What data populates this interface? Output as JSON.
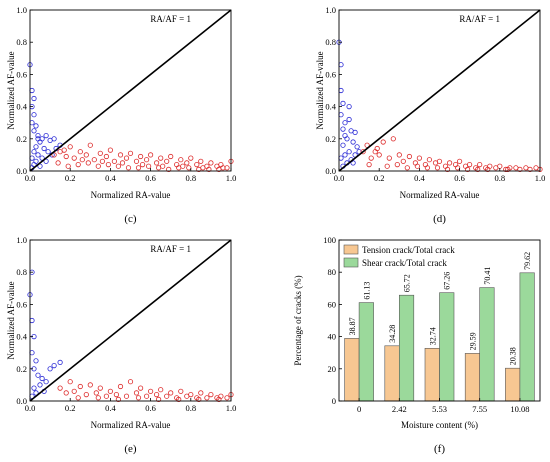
{
  "chart_data": [
    {
      "panel": "c",
      "type": "scatter",
      "xlabel": "Normalized RA-value",
      "ylabel": "Normalized AF-value",
      "xlim": [
        0,
        1.0
      ],
      "ylim": [
        0,
        1.0
      ],
      "xticks": [
        "0.0",
        "0.2",
        "0.4",
        "0.6",
        "0.8",
        "1.0"
      ],
      "yticks": [
        "0.0",
        "0.2",
        "0.4",
        "0.6",
        "0.8",
        "1.0"
      ],
      "annotation": "RA/AF = 1",
      "diagonal": {
        "x": [
          0,
          1.0
        ],
        "y": [
          0,
          1.0
        ],
        "color": "#000000"
      },
      "series": [
        {
          "color": "#2a2ad6",
          "points": [
            [
              0.0,
              0.66
            ],
            [
              0.01,
              0.5
            ],
            [
              0.01,
              0.4
            ],
            [
              0.02,
              0.35
            ],
            [
              0.01,
              0.3
            ],
            [
              0.03,
              0.28
            ],
            [
              0.02,
              0.25
            ],
            [
              0.04,
              0.22
            ],
            [
              0.06,
              0.2
            ],
            [
              0.08,
              0.22
            ],
            [
              0.05,
              0.18
            ],
            [
              0.1,
              0.19
            ],
            [
              0.12,
              0.2
            ],
            [
              0.03,
              0.15
            ],
            [
              0.07,
              0.14
            ],
            [
              0.02,
              0.12
            ],
            [
              0.09,
              0.12
            ],
            [
              0.04,
              0.1
            ],
            [
              0.11,
              0.1
            ],
            [
              0.01,
              0.08
            ],
            [
              0.06,
              0.08
            ],
            [
              0.03,
              0.06
            ],
            [
              0.08,
              0.06
            ],
            [
              0.02,
              0.04
            ],
            [
              0.05,
              0.03
            ],
            [
              0.01,
              0.02
            ],
            [
              0.13,
              0.14
            ],
            [
              0.15,
              0.16
            ],
            [
              0.04,
              0.2
            ],
            [
              0.02,
              0.45
            ]
          ]
        },
        {
          "color": "#dd2a2a",
          "points": [
            [
              0.12,
              0.1
            ],
            [
              0.15,
              0.12
            ],
            [
              0.18,
              0.09
            ],
            [
              0.2,
              0.15
            ],
            [
              0.22,
              0.08
            ],
            [
              0.25,
              0.12
            ],
            [
              0.28,
              0.1
            ],
            [
              0.3,
              0.16
            ],
            [
              0.32,
              0.07
            ],
            [
              0.35,
              0.11
            ],
            [
              0.38,
              0.09
            ],
            [
              0.4,
              0.13
            ],
            [
              0.42,
              0.06
            ],
            [
              0.45,
              0.1
            ],
            [
              0.48,
              0.08
            ],
            [
              0.5,
              0.11
            ],
            [
              0.53,
              0.06
            ],
            [
              0.55,
              0.09
            ],
            [
              0.58,
              0.07
            ],
            [
              0.6,
              0.1
            ],
            [
              0.63,
              0.05
            ],
            [
              0.65,
              0.08
            ],
            [
              0.68,
              0.06
            ],
            [
              0.7,
              0.09
            ],
            [
              0.73,
              0.04
            ],
            [
              0.75,
              0.07
            ],
            [
              0.78,
              0.05
            ],
            [
              0.8,
              0.08
            ],
            [
              0.83,
              0.04
            ],
            [
              0.85,
              0.06
            ],
            [
              0.88,
              0.03
            ],
            [
              0.9,
              0.05
            ],
            [
              0.93,
              0.03
            ],
            [
              0.95,
              0.04
            ],
            [
              0.98,
              0.02
            ],
            [
              1.0,
              0.06
            ],
            [
              0.14,
              0.05
            ],
            [
              0.24,
              0.04
            ],
            [
              0.34,
              0.03
            ],
            [
              0.44,
              0.03
            ],
            [
              0.54,
              0.02
            ],
            [
              0.64,
              0.02
            ],
            [
              0.74,
              0.02
            ],
            [
              0.84,
              0.01
            ],
            [
              0.94,
              0.01
            ],
            [
              0.19,
              0.03
            ],
            [
              0.29,
              0.05
            ],
            [
              0.39,
              0.04
            ],
            [
              0.49,
              0.02
            ],
            [
              0.59,
              0.03
            ],
            [
              0.69,
              0.01
            ],
            [
              0.79,
              0.02
            ],
            [
              0.89,
              0.01
            ],
            [
              0.17,
              0.13
            ],
            [
              0.26,
              0.07
            ],
            [
              0.36,
              0.06
            ],
            [
              0.46,
              0.05
            ],
            [
              0.56,
              0.04
            ],
            [
              0.66,
              0.03
            ],
            [
              0.76,
              0.03
            ],
            [
              0.86,
              0.02
            ],
            [
              0.96,
              0.02
            ]
          ]
        }
      ]
    },
    {
      "panel": "d",
      "type": "scatter",
      "xlabel": "Normalized RA-value",
      "ylabel": "Normalized AF-value",
      "xlim": [
        0,
        1.0
      ],
      "ylim": [
        0,
        1.0
      ],
      "xticks": [
        "0.0",
        "0.2",
        "0.4",
        "0.6",
        "0.8",
        "1.0"
      ],
      "yticks": [
        "0.0",
        "0.2",
        "0.4",
        "0.6",
        "0.8",
        "1.0"
      ],
      "annotation": "RA/AF = 1",
      "diagonal": {
        "x": [
          0,
          1.0
        ],
        "y": [
          0,
          1.0
        ],
        "color": "#000000"
      },
      "series": [
        {
          "color": "#2a2ad6",
          "points": [
            [
              0.0,
              0.8
            ],
            [
              0.01,
              0.66
            ],
            [
              0.01,
              0.5
            ],
            [
              0.02,
              0.42
            ],
            [
              0.01,
              0.35
            ],
            [
              0.03,
              0.3
            ],
            [
              0.05,
              0.32
            ],
            [
              0.06,
              0.25
            ],
            [
              0.08,
              0.24
            ],
            [
              0.04,
              0.2
            ],
            [
              0.07,
              0.18
            ],
            [
              0.02,
              0.16
            ],
            [
              0.09,
              0.15
            ],
            [
              0.05,
              0.12
            ],
            [
              0.03,
              0.1
            ],
            [
              0.08,
              0.1
            ],
            [
              0.01,
              0.08
            ],
            [
              0.06,
              0.07
            ],
            [
              0.04,
              0.05
            ],
            [
              0.02,
              0.03
            ],
            [
              0.1,
              0.12
            ],
            [
              0.07,
              0.05
            ],
            [
              0.03,
              0.22
            ],
            [
              0.05,
              0.4
            ],
            [
              0.02,
              0.26
            ]
          ]
        },
        {
          "color": "#dd2a2a",
          "points": [
            [
              0.12,
              0.12
            ],
            [
              0.14,
              0.16
            ],
            [
              0.16,
              0.08
            ],
            [
              0.18,
              0.12
            ],
            [
              0.2,
              0.1
            ],
            [
              0.22,
              0.18
            ],
            [
              0.25,
              0.08
            ],
            [
              0.27,
              0.2
            ],
            [
              0.3,
              0.1
            ],
            [
              0.32,
              0.06
            ],
            [
              0.35,
              0.09
            ],
            [
              0.38,
              0.05
            ],
            [
              0.4,
              0.08
            ],
            [
              0.43,
              0.04
            ],
            [
              0.45,
              0.07
            ],
            [
              0.48,
              0.05
            ],
            [
              0.5,
              0.06
            ],
            [
              0.53,
              0.03
            ],
            [
              0.55,
              0.05
            ],
            [
              0.58,
              0.04
            ],
            [
              0.6,
              0.06
            ],
            [
              0.63,
              0.03
            ],
            [
              0.65,
              0.04
            ],
            [
              0.68,
              0.02
            ],
            [
              0.7,
              0.04
            ],
            [
              0.73,
              0.02
            ],
            [
              0.75,
              0.03
            ],
            [
              0.78,
              0.02
            ],
            [
              0.8,
              0.03
            ],
            [
              0.83,
              0.01
            ],
            [
              0.85,
              0.02
            ],
            [
              0.88,
              0.02
            ],
            [
              0.9,
              0.01
            ],
            [
              0.93,
              0.02
            ],
            [
              0.95,
              0.01
            ],
            [
              0.98,
              0.02
            ],
            [
              1.0,
              0.01
            ],
            [
              0.15,
              0.04
            ],
            [
              0.24,
              0.03
            ],
            [
              0.34,
              0.02
            ],
            [
              0.44,
              0.02
            ],
            [
              0.54,
              0.01
            ],
            [
              0.64,
              0.01
            ],
            [
              0.74,
              0.01
            ],
            [
              0.84,
              0.01
            ],
            [
              0.19,
              0.14
            ],
            [
              0.29,
              0.04
            ],
            [
              0.39,
              0.03
            ],
            [
              0.49,
              0.02
            ],
            [
              0.59,
              0.02
            ],
            [
              0.69,
              0.01
            ]
          ]
        }
      ]
    },
    {
      "panel": "e",
      "type": "scatter",
      "xlabel": "Normalized RA-value",
      "ylabel": "Normalized AF-value",
      "xlim": [
        0,
        1.0
      ],
      "ylim": [
        0,
        1.0
      ],
      "xticks": [
        "0.0",
        "0.2",
        "0.4",
        "0.6",
        "0.8",
        "1.0"
      ],
      "yticks": [
        "0.0",
        "0.2",
        "0.4",
        "0.6",
        "0.8",
        "1.0"
      ],
      "annotation": "RA/AF = 1",
      "diagonal": {
        "x": [
          0,
          1.0
        ],
        "y": [
          0,
          1.0
        ],
        "color": "#000000"
      },
      "series": [
        {
          "color": "#2a2ad6",
          "points": [
            [
              0.01,
              0.8
            ],
            [
              0.0,
              0.66
            ],
            [
              0.01,
              0.5
            ],
            [
              0.02,
              0.4
            ],
            [
              0.01,
              0.3
            ],
            [
              0.03,
              0.25
            ],
            [
              0.02,
              0.2
            ],
            [
              0.04,
              0.16
            ],
            [
              0.06,
              0.14
            ],
            [
              0.1,
              0.2
            ],
            [
              0.12,
              0.22
            ],
            [
              0.15,
              0.24
            ],
            [
              0.08,
              0.12
            ],
            [
              0.05,
              0.1
            ],
            [
              0.02,
              0.08
            ],
            [
              0.03,
              0.05
            ],
            [
              0.01,
              0.03
            ],
            [
              0.07,
              0.06
            ]
          ]
        },
        {
          "color": "#dd2a2a",
          "points": [
            [
              0.15,
              0.08
            ],
            [
              0.18,
              0.05
            ],
            [
              0.2,
              0.12
            ],
            [
              0.22,
              0.06
            ],
            [
              0.25,
              0.09
            ],
            [
              0.28,
              0.04
            ],
            [
              0.3,
              0.1
            ],
            [
              0.33,
              0.05
            ],
            [
              0.35,
              0.08
            ],
            [
              0.38,
              0.03
            ],
            [
              0.4,
              0.06
            ],
            [
              0.43,
              0.04
            ],
            [
              0.45,
              0.09
            ],
            [
              0.48,
              0.03
            ],
            [
              0.5,
              0.12
            ],
            [
              0.53,
              0.05
            ],
            [
              0.55,
              0.08
            ],
            [
              0.58,
              0.03
            ],
            [
              0.6,
              0.06
            ],
            [
              0.63,
              0.04
            ],
            [
              0.65,
              0.07
            ],
            [
              0.68,
              0.03
            ],
            [
              0.7,
              0.05
            ],
            [
              0.73,
              0.02
            ],
            [
              0.75,
              0.06
            ],
            [
              0.78,
              0.03
            ],
            [
              0.8,
              0.04
            ],
            [
              0.83,
              0.02
            ],
            [
              0.85,
              0.05
            ],
            [
              0.88,
              0.02
            ],
            [
              0.9,
              0.04
            ],
            [
              0.93,
              0.02
            ],
            [
              0.95,
              0.03
            ],
            [
              0.98,
              0.02
            ],
            [
              1.0,
              0.04
            ],
            [
              0.24,
              0.02
            ],
            [
              0.34,
              0.02
            ],
            [
              0.44,
              0.01
            ],
            [
              0.54,
              0.02
            ],
            [
              0.64,
              0.01
            ],
            [
              0.74,
              0.01
            ],
            [
              0.84,
              0.01
            ],
            [
              0.94,
              0.01
            ]
          ]
        }
      ]
    },
    {
      "panel": "f",
      "type": "bar",
      "xlabel": "Moisture content (%)",
      "ylabel": "Percentage of cracks (%)",
      "ylim": [
        0,
        100
      ],
      "yticks": [
        "0",
        "20",
        "40",
        "60",
        "80",
        "100"
      ],
      "categories": [
        "0",
        "2.42",
        "5.53",
        "7.55",
        "10.08"
      ],
      "series": [
        {
          "name": "Tension crack/Total crack",
          "color": "#f7c792",
          "values": [
            38.87,
            34.28,
            32.74,
            29.59,
            20.38
          ],
          "labels": [
            "38.87",
            "34.28",
            "32.74",
            "29.59",
            "20.38"
          ]
        },
        {
          "name": "Shear crack/Total crack",
          "color": "#9bd99b",
          "values": [
            61.13,
            65.72,
            67.26,
            70.41,
            79.62
          ],
          "labels": [
            "61.13",
            "65.72",
            "67.26",
            "70.41",
            "79.62"
          ]
        }
      ],
      "legend": "top-left"
    }
  ],
  "panel_labels": [
    "(c)",
    "(d)",
    "(e)",
    "(f)"
  ]
}
